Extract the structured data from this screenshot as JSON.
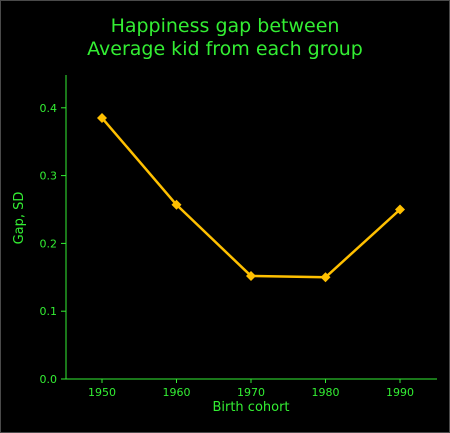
{
  "chart_data": {
    "type": "line",
    "title": [
      "Happiness gap between",
      "Average kid from each group"
    ],
    "xlabel": "Birth cohort",
    "ylabel": "Gap, SD",
    "x": [
      "1950",
      "1960",
      "1970",
      "1980",
      "1990"
    ],
    "series": [
      {
        "values": [
          0.385,
          0.257,
          0.152,
          0.15,
          0.25
        ]
      }
    ],
    "ylim": [
      0,
      0.45
    ],
    "yticks": [
      "0.0",
      "0.1",
      "0.2",
      "0.3",
      "0.4"
    ],
    "grid": false,
    "colors": {
      "axis": "#33ee33",
      "text": "#33ee33",
      "line": "#ffc000",
      "background": "#000000"
    }
  }
}
